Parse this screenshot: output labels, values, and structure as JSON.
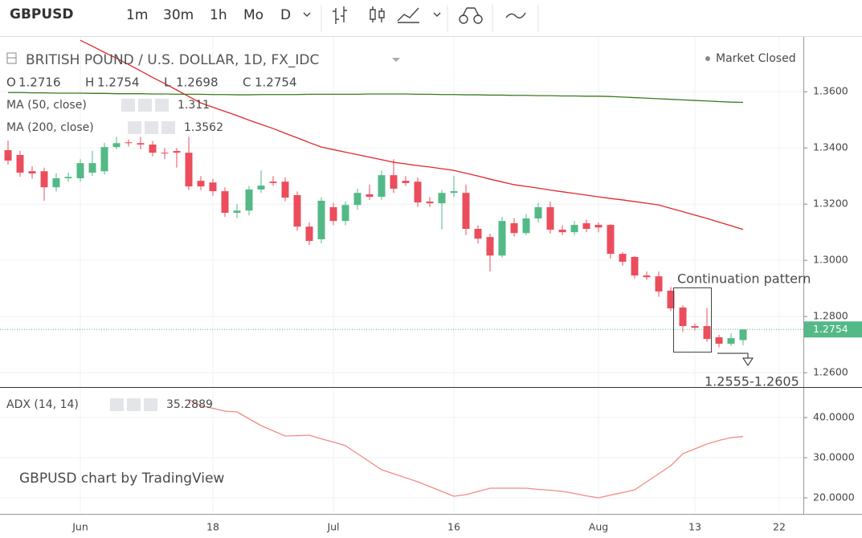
{
  "toolbar": {
    "symbol": "GBPUSD",
    "intervals": [
      "1m",
      "30m",
      "1h",
      "Mo",
      "D"
    ]
  },
  "chart_data": [
    {
      "type": "candlestick",
      "title": "BRITISH POUND / U.S. DOLLAR, 1D, FX_IDC",
      "status": "Market Closed",
      "ohlc_labels": [
        "O",
        "H",
        "L",
        "C"
      ],
      "credit": "GBPUSD chart by TradingView",
      "categories": [
        null,
        null,
        null,
        null,
        null,
        null,
        "Jun",
        null,
        null,
        null,
        null,
        null,
        null,
        null,
        null,
        null,
        null,
        "18",
        null,
        null,
        null,
        null,
        null,
        null,
        null,
        null,
        null,
        "Jul",
        null,
        null,
        null,
        null,
        null,
        null,
        null,
        null,
        null,
        "16",
        null,
        null,
        null,
        null,
        null,
        null,
        null,
        null,
        null,
        null,
        null,
        "Aug",
        null,
        null,
        null,
        null,
        null,
        null,
        null,
        "13",
        null,
        null,
        null,
        null,
        null,
        null,
        "22"
      ],
      "up_color": "#53b987",
      "down_color": "#eb4d5c",
      "series": [
        {
          "name": "BRITISH POUND / U.S. DOLLAR, 1D, FX_IDC",
          "open": [
            1.3392,
            1.3375,
            1.3317,
            1.3317,
            1.326,
            1.3292,
            1.3292,
            1.3312,
            1.3317,
            1.3403,
            1.342,
            1.3417,
            1.3412,
            1.3383,
            1.3389,
            1.3383,
            1.3283,
            1.3277,
            1.3246,
            1.3169,
            1.3177,
            1.3252,
            1.328,
            1.328,
            1.3232,
            1.312,
            1.3075,
            1.3189,
            1.314,
            1.3197,
            1.3235,
            1.3226,
            1.3303,
            1.3283,
            1.328,
            1.3209,
            1.3203,
            1.324,
            1.324,
            1.3112,
            1.3083,
            1.3017,
            1.3132,
            1.3097,
            1.3149,
            1.3189,
            1.3109,
            1.31,
            1.3132,
            1.3126,
            1.3126,
            1.3023,
            1.3012,
            1.2946,
            1.2943,
            1.2892,
            1.2832,
            1.2766,
            1.2766,
            1.2726,
            1.2703,
            1.2716,
            null,
            null,
            null
          ],
          "high": [
            1.3426,
            1.339,
            1.3335,
            1.333,
            1.331,
            1.3312,
            1.336,
            1.339,
            1.3418,
            1.344,
            1.343,
            1.344,
            1.3425,
            1.34,
            1.34,
            1.344,
            1.33,
            1.329,
            1.326,
            1.32,
            1.3265,
            1.332,
            1.33,
            1.3295,
            1.3245,
            1.3135,
            1.3225,
            1.3205,
            1.321,
            1.3255,
            1.327,
            1.332,
            1.336,
            1.33,
            1.3295,
            1.3225,
            1.325,
            1.33,
            1.327,
            1.3125,
            1.3095,
            1.3155,
            1.315,
            1.3165,
            1.3205,
            1.321,
            1.3125,
            1.314,
            1.3145,
            1.3135,
            1.313,
            1.303,
            1.3015,
            1.296,
            1.296,
            1.2905,
            1.284,
            1.2775,
            1.283,
            1.2735,
            1.274,
            1.2754,
            null,
            null,
            null
          ],
          "low": [
            1.334,
            1.3297,
            1.329,
            1.3212,
            1.3245,
            1.328,
            1.328,
            1.33,
            1.3305,
            1.3395,
            1.3405,
            1.3395,
            1.337,
            1.336,
            1.333,
            1.325,
            1.325,
            1.323,
            1.3155,
            1.315,
            1.316,
            1.324,
            1.3265,
            1.321,
            1.3105,
            1.3055,
            1.306,
            1.3125,
            1.3125,
            1.318,
            1.3215,
            1.3215,
            1.324,
            1.3265,
            1.319,
            1.319,
            1.311,
            1.3225,
            1.309,
            1.306,
            1.296,
            1.301,
            1.3085,
            1.309,
            1.3135,
            1.3095,
            1.309,
            1.309,
            1.31,
            1.31,
            1.3005,
            1.298,
            1.2935,
            1.293,
            1.287,
            1.282,
            1.2745,
            1.275,
            1.271,
            1.269,
            1.2695,
            1.2698,
            null,
            null,
            null
          ],
          "close": [
            1.3355,
            1.3312,
            1.3309,
            1.326,
            1.3292,
            1.3297,
            1.3346,
            1.3346,
            1.3403,
            1.3417,
            1.3417,
            1.3412,
            1.3383,
            1.338,
            1.3383,
            1.3263,
            1.3263,
            1.3246,
            1.3169,
            1.3177,
            1.3252,
            1.3266,
            1.3275,
            1.3223,
            1.312,
            1.3069,
            1.3212,
            1.314,
            1.3197,
            1.324,
            1.3226,
            1.3303,
            1.3255,
            1.3275,
            1.3206,
            1.3203,
            1.324,
            1.3246,
            1.3112,
            1.3077,
            1.3017,
            1.314,
            1.3097,
            1.3149,
            1.3189,
            1.3109,
            1.31,
            1.3126,
            1.3112,
            1.3117,
            1.3023,
            1.2995,
            1.2946,
            1.294,
            1.2889,
            1.2829,
            1.2766,
            1.276,
            1.272,
            1.2703,
            1.2723,
            1.2754,
            null,
            null,
            null
          ]
        },
        {
          "name": "MA (50, close)",
          "color": "#e0282e",
          "values": [
            null,
            null,
            null,
            null,
            null,
            null,
            1.3783,
            1.3762,
            1.374,
            1.3719,
            1.3697,
            1.3674,
            1.3651,
            1.3629,
            1.3606,
            1.3583,
            1.356,
            1.3545,
            1.353,
            1.3515,
            1.3499,
            1.3484,
            1.3469,
            1.3452,
            1.3436,
            1.3419,
            1.3403,
            1.3394,
            1.3385,
            1.3376,
            1.3367,
            1.3358,
            1.3349,
            1.3343,
            1.3337,
            1.3332,
            1.3326,
            1.332,
            1.331,
            1.33,
            1.3289,
            1.3279,
            1.3269,
            1.3263,
            1.3257,
            1.325,
            1.3244,
            1.3238,
            1.3232,
            1.3226,
            1.322,
            1.3215,
            1.3209,
            1.3203,
            1.3197,
            1.3185,
            1.3173,
            1.3161,
            1.3149,
            1.3136,
            1.3123,
            1.311,
            null,
            null,
            null
          ]
        },
        {
          "name": "MA (200, close)",
          "color": "#3a7a1e",
          "values": [
            1.3597,
            1.3597,
            1.3596,
            1.3596,
            1.3595,
            1.3595,
            1.3595,
            1.3594,
            1.3594,
            1.3593,
            1.3593,
            1.3593,
            1.3592,
            1.3592,
            1.3591,
            1.3591,
            1.3591,
            1.359,
            1.359,
            1.3589,
            1.3589,
            1.359,
            1.359,
            1.359,
            1.359,
            1.3591,
            1.3591,
            1.3591,
            1.3591,
            1.3591,
            1.3592,
            1.3592,
            1.3592,
            1.3592,
            1.3591,
            1.3591,
            1.359,
            1.359,
            1.3589,
            1.3589,
            1.3588,
            1.3588,
            1.3587,
            1.3587,
            1.3586,
            1.3586,
            1.3585,
            1.3585,
            1.3584,
            1.3584,
            1.3583,
            1.3581,
            1.3579,
            1.3577,
            1.3575,
            1.3573,
            1.3571,
            1.3569,
            1.3567,
            1.3565,
            1.3563,
            1.3562,
            null,
            null,
            null
          ]
        }
      ],
      "ylim": [
        1.2549,
        1.3795
      ],
      "yticks": [
        {
          "value": 1.26,
          "label": "1.2600"
        },
        {
          "value": 1.28,
          "label": "1.2800"
        },
        {
          "value": 1.3,
          "label": "1.3000"
        },
        {
          "value": 1.32,
          "label": "1.3200"
        },
        {
          "value": 1.34,
          "label": "1.3400"
        },
        {
          "value": 1.36,
          "label": "1.3600"
        }
      ],
      "grid": true,
      "annotations": [
        "Continuation pattern",
        "1.2555-1.2605"
      ]
    },
    {
      "type": "line",
      "series": [
        {
          "name": "ADX (14, 14)",
          "color": "#f28b82",
          "values": [
            null,
            null,
            null,
            null,
            null,
            null,
            null,
            null,
            null,
            null,
            null,
            null,
            null,
            null,
            null,
            44.5,
            43,
            42.3,
            41.6,
            41.4,
            39.7,
            38,
            36.7,
            35.4,
            35.5,
            35.6,
            34.7,
            33.9,
            33,
            31,
            29,
            27,
            26,
            25,
            24,
            22.8,
            21.6,
            20.4,
            20.8,
            21.6,
            22.4,
            22.4,
            22.4,
            22.4,
            22.1,
            21.9,
            21.6,
            21.1,
            20.5,
            20,
            20.7,
            21.3,
            22,
            24,
            26,
            28,
            31,
            32.2,
            33.4,
            34.3,
            35,
            35.2889,
            null,
            null,
            null
          ]
        }
      ],
      "value_color": "#d0021b",
      "ylim": [
        16,
        47.2
      ],
      "yticks": [
        {
          "value": 20,
          "label": "20.0000"
        },
        {
          "value": 30,
          "label": "30.0000"
        },
        {
          "value": 40,
          "label": "40.0000"
        }
      ],
      "grid": true
    }
  ]
}
